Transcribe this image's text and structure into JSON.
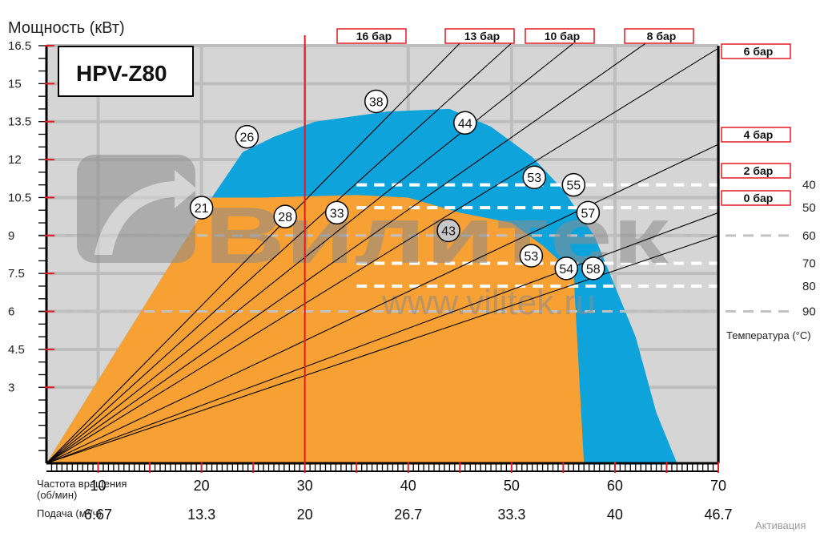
{
  "chart_data": {
    "type": "area",
    "model_label": "HPV-Z80",
    "ylabel": "Мощность (кВт)",
    "ylim": [
      0,
      16.5
    ],
    "xlim": [
      5,
      70
    ],
    "grid": true,
    "y_ticks": [
      "16.5",
      "15",
      "13.5",
      "12",
      "10.5",
      "9",
      "7.5",
      "6",
      "4.5",
      "3"
    ],
    "y_tick_values": [
      16.5,
      15,
      13.5,
      12,
      10.5,
      9,
      7.5,
      6,
      4.5,
      3
    ],
    "x_label_lines": [
      "Частота вращения",
      "(об/мин)"
    ],
    "x_ticks": [
      "10",
      "20",
      "30",
      "40",
      "50",
      "60",
      "70"
    ],
    "x_tick_values": [
      10,
      20,
      30,
      40,
      50,
      60,
      70
    ],
    "flow_label": "Подача (м³/ч)",
    "flow_ticks": [
      "6.67",
      "13.3",
      "20",
      "26.7",
      "33.3",
      "40",
      "46.7"
    ],
    "temperature_label": "Температура (°C)",
    "temperatures": [
      {
        "label": "40",
        "y": 11.0
      },
      {
        "label": "50",
        "y": 10.1
      },
      {
        "label": "60",
        "y": 9.0
      },
      {
        "label": "70",
        "y": 7.9
      },
      {
        "label": "80",
        "y": 7.0
      },
      {
        "label": "90",
        "y": 6.0
      }
    ],
    "pressure_lines": [
      {
        "label": "16 бар",
        "end": [
          45,
          16.6
        ]
      },
      {
        "label": "13 бар",
        "end": [
          50,
          16.6
        ]
      },
      {
        "label": "10 бар",
        "end": [
          56,
          16.6
        ]
      },
      {
        "label": "8 бар",
        "end": [
          63,
          16.6
        ]
      },
      {
        "label": "6 бар",
        "end": [
          70,
          16.4
        ]
      },
      {
        "label": "4 бар",
        "end": [
          70,
          12.6
        ]
      },
      {
        "label": "2 бар",
        "end": [
          70,
          9.9
        ]
      },
      {
        "label": "0 бар",
        "end": [
          70,
          9.0
        ]
      }
    ],
    "orange_area": [
      [
        5,
        0
      ],
      [
        21,
        10.5
      ],
      [
        26,
        10.5
      ],
      [
        35,
        10.6
      ],
      [
        40,
        10.5
      ],
      [
        45,
        9.9
      ],
      [
        50,
        9.5
      ],
      [
        53,
        8.6
      ],
      [
        56,
        7.5
      ],
      [
        57,
        0
      ]
    ],
    "blue_area": [
      [
        5,
        0
      ],
      [
        21,
        10.5
      ],
      [
        24,
        12.3
      ],
      [
        27,
        12.9
      ],
      [
        31,
        13.5
      ],
      [
        38,
        13.9
      ],
      [
        44,
        14.0
      ],
      [
        48,
        13.3
      ],
      [
        52,
        12.1
      ],
      [
        55,
        10.8
      ],
      [
        58,
        9.0
      ],
      [
        60,
        7.0
      ],
      [
        62,
        5.0
      ],
      [
        64,
        2.0
      ],
      [
        66,
        0
      ]
    ],
    "vertical_line_x": 30,
    "point_labels": [
      {
        "label": "21",
        "x": 20,
        "y": 10.1,
        "fill": "#ffffff"
      },
      {
        "label": "26",
        "x": 24.4,
        "y": 12.9,
        "fill": "#ffffff"
      },
      {
        "label": "28",
        "x": 28.1,
        "y": 9.75,
        "fill": "#ffffff"
      },
      {
        "label": "33",
        "x": 33.1,
        "y": 9.9,
        "fill": "#ffffff"
      },
      {
        "label": "38",
        "x": 36.9,
        "y": 14.3,
        "fill": "#ffffff"
      },
      {
        "label": "44",
        "x": 45.5,
        "y": 13.45,
        "fill": "#ffffff"
      },
      {
        "label": "43",
        "x": 43.9,
        "y": 9.2,
        "fill": "#c8c8c8"
      },
      {
        "label": "53",
        "x": 52.2,
        "y": 11.3,
        "fill": "#ffffff"
      },
      {
        "label": "55",
        "x": 56.0,
        "y": 11.0,
        "fill": "#ffffff"
      },
      {
        "label": "57",
        "x": 57.4,
        "y": 9.9,
        "fill": "#ffffff"
      },
      {
        "label": "53",
        "x": 51.9,
        "y": 8.2,
        "fill": "#ffffff"
      },
      {
        "label": "54",
        "x": 55.3,
        "y": 7.7,
        "fill": "#ffffff"
      },
      {
        "label": "58",
        "x": 57.9,
        "y": 7.7,
        "fill": "#ffffff"
      }
    ]
  },
  "watermark": {
    "brand": "Вилитек",
    "url": "www.vilitek.ru"
  },
  "footer": {
    "activation_text": "Активация"
  },
  "colors": {
    "plot_bg": "#d5d5d5",
    "orange": "#f7a033",
    "blue": "#0fa3dc",
    "vline": "#e01b24",
    "grid": "#bdbdbd",
    "axis": "#000000",
    "tick_red": "#e01b24"
  }
}
